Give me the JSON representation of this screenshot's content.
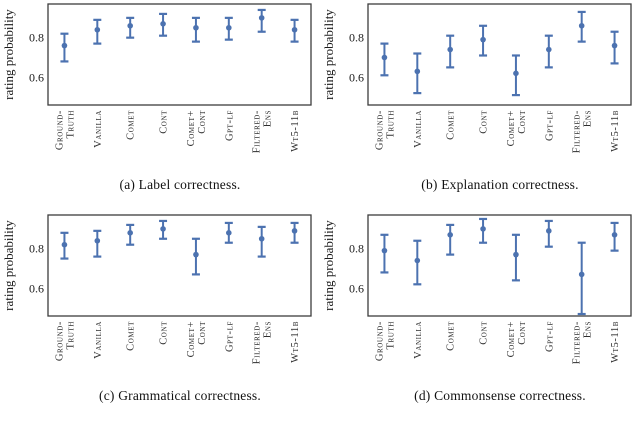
{
  "figure": {
    "colors": {
      "errorbar": "#4C72B0",
      "spine": "#3d3d3d",
      "text": "#1b1b1b"
    }
  },
  "chart_data": [
    {
      "type": "scatter",
      "subtype": "errorbar",
      "title": "(a) Label correctness.",
      "caption": "(a) Label correctness.",
      "ylabel": "rating probability",
      "ylim": [
        0.46,
        0.97
      ],
      "grid": false,
      "yticks": [
        {
          "value": 0.8,
          "label": "0.8"
        },
        {
          "value": 0.6,
          "label": "0.6"
        }
      ],
      "categories": [
        "GROUND-TRUTH",
        "VANILLA",
        "COMET",
        "CONT",
        "COMET+CONT",
        "GPT-LF",
        "FILTERED-ENS",
        "WT5-11B"
      ],
      "category_display_lines": [
        [
          "Ground-",
          "Truth"
        ],
        [
          "Vanilla"
        ],
        [
          "Comet"
        ],
        [
          "Cont"
        ],
        [
          "Comet+",
          "Cont"
        ],
        [
          "Gpt-lf"
        ],
        [
          "Filtered-",
          "Ens"
        ],
        [
          "Wt5-11b"
        ]
      ],
      "points": [
        {
          "value": 0.76,
          "lo": 0.68,
          "hi": 0.82
        },
        {
          "value": 0.84,
          "lo": 0.77,
          "hi": 0.89
        },
        {
          "value": 0.86,
          "lo": 0.8,
          "hi": 0.9
        },
        {
          "value": 0.87,
          "lo": 0.81,
          "hi": 0.92
        },
        {
          "value": 0.85,
          "lo": 0.78,
          "hi": 0.9
        },
        {
          "value": 0.85,
          "lo": 0.79,
          "hi": 0.9
        },
        {
          "value": 0.9,
          "lo": 0.83,
          "hi": 0.94
        },
        {
          "value": 0.84,
          "lo": 0.78,
          "hi": 0.89
        }
      ]
    },
    {
      "type": "scatter",
      "subtype": "errorbar",
      "title": "(b) Explanation correctness.",
      "caption": "(b) Explanation correctness.",
      "ylabel": "rating probability",
      "ylim": [
        0.46,
        0.97
      ],
      "grid": false,
      "yticks": [
        {
          "value": 0.8,
          "label": "0.8"
        },
        {
          "value": 0.6,
          "label": "0.6"
        }
      ],
      "categories": [
        "GROUND-TRUTH",
        "VANILLA",
        "COMET",
        "CONT",
        "COMET+CONT",
        "GPT-LF",
        "FILTERED-ENS",
        "WT5-11B"
      ],
      "category_display_lines": [
        [
          "Ground-",
          "Truth"
        ],
        [
          "Vanilla"
        ],
        [
          "Comet"
        ],
        [
          "Cont"
        ],
        [
          "Comet+",
          "Cont"
        ],
        [
          "Gpt-lf"
        ],
        [
          "Filtered-",
          "Ens"
        ],
        [
          "Wt5-11b"
        ]
      ],
      "points": [
        {
          "value": 0.7,
          "lo": 0.61,
          "hi": 0.77
        },
        {
          "value": 0.63,
          "lo": 0.52,
          "hi": 0.72
        },
        {
          "value": 0.74,
          "lo": 0.65,
          "hi": 0.81
        },
        {
          "value": 0.79,
          "lo": 0.71,
          "hi": 0.86
        },
        {
          "value": 0.62,
          "lo": 0.51,
          "hi": 0.71
        },
        {
          "value": 0.74,
          "lo": 0.65,
          "hi": 0.81
        },
        {
          "value": 0.86,
          "lo": 0.78,
          "hi": 0.93
        },
        {
          "value": 0.76,
          "lo": 0.67,
          "hi": 0.83
        }
      ]
    },
    {
      "type": "scatter",
      "subtype": "errorbar",
      "title": "(c) Grammatical correctness.",
      "caption": "(c) Grammatical correctness.",
      "ylabel": "rating probability",
      "ylim": [
        0.46,
        0.97
      ],
      "grid": false,
      "yticks": [
        {
          "value": 0.8,
          "label": "0.8"
        },
        {
          "value": 0.6,
          "label": "0.6"
        }
      ],
      "categories": [
        "GROUND-TRUTH",
        "VANILLA",
        "COMET",
        "CONT",
        "COMET+CONT",
        "GPT-LF",
        "FILTERED-ENS",
        "WT5-11B"
      ],
      "category_display_lines": [
        [
          "Ground-",
          "Truth"
        ],
        [
          "Vanilla"
        ],
        [
          "Comet"
        ],
        [
          "Cont"
        ],
        [
          "Comet+",
          "Cont"
        ],
        [
          "Gpt-lf"
        ],
        [
          "Filtered-",
          "Ens"
        ],
        [
          "Wt5-11b"
        ]
      ],
      "points": [
        {
          "value": 0.82,
          "lo": 0.75,
          "hi": 0.88
        },
        {
          "value": 0.84,
          "lo": 0.76,
          "hi": 0.89
        },
        {
          "value": 0.88,
          "lo": 0.82,
          "hi": 0.92
        },
        {
          "value": 0.9,
          "lo": 0.85,
          "hi": 0.94
        },
        {
          "value": 0.77,
          "lo": 0.67,
          "hi": 0.85
        },
        {
          "value": 0.88,
          "lo": 0.83,
          "hi": 0.93
        },
        {
          "value": 0.85,
          "lo": 0.76,
          "hi": 0.91
        },
        {
          "value": 0.89,
          "lo": 0.83,
          "hi": 0.93
        }
      ]
    },
    {
      "type": "scatter",
      "subtype": "errorbar",
      "title": "(d) Commonsense correctness.",
      "caption": "(d) Commonsense correctness.",
      "ylabel": "rating probability",
      "ylim": [
        0.46,
        0.97
      ],
      "grid": false,
      "yticks": [
        {
          "value": 0.8,
          "label": "0.8"
        },
        {
          "value": 0.6,
          "label": "0.6"
        }
      ],
      "categories": [
        "GROUND-TRUTH",
        "VANILLA",
        "COMET",
        "CONT",
        "COMET+CONT",
        "GPT-LF",
        "FILTERED-ENS",
        "WT5-11B"
      ],
      "category_display_lines": [
        [
          "Ground-",
          "Truth"
        ],
        [
          "Vanilla"
        ],
        [
          "Comet"
        ],
        [
          "Cont"
        ],
        [
          "Comet+",
          "Cont"
        ],
        [
          "Gpt-lf"
        ],
        [
          "Filtered-",
          "Ens"
        ],
        [
          "Wt5-11b"
        ]
      ],
      "points": [
        {
          "value": 0.79,
          "lo": 0.68,
          "hi": 0.87
        },
        {
          "value": 0.74,
          "lo": 0.62,
          "hi": 0.84
        },
        {
          "value": 0.87,
          "lo": 0.77,
          "hi": 0.92
        },
        {
          "value": 0.9,
          "lo": 0.83,
          "hi": 0.95
        },
        {
          "value": 0.77,
          "lo": 0.64,
          "hi": 0.87
        },
        {
          "value": 0.89,
          "lo": 0.81,
          "hi": 0.94
        },
        {
          "value": 0.67,
          "lo": 0.47,
          "hi": 0.83
        },
        {
          "value": 0.87,
          "lo": 0.79,
          "hi": 0.93
        }
      ]
    }
  ]
}
